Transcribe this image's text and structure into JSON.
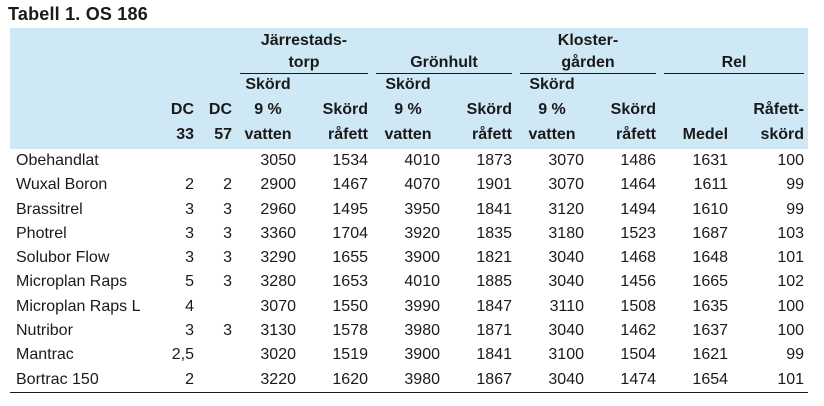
{
  "title": "Tabell 1. OS 186",
  "groups": {
    "jarrestad": [
      "Järrestads-",
      "torp"
    ],
    "gronhult": "Grönhult",
    "klostergarden": [
      "Kloster-",
      "gården"
    ],
    "rel": "Rel"
  },
  "subheaders": {
    "dc33": [
      "DC",
      "33"
    ],
    "dc57": [
      "DC",
      "57"
    ],
    "skord9": [
      "Skörd",
      "9 %",
      "vatten"
    ],
    "skordrafett": [
      "Skörd",
      "råfett"
    ],
    "medel": "Medel",
    "rafettskord": [
      "Råfett-",
      "skörd"
    ]
  },
  "rows": [
    {
      "name": "Obehandlat",
      "dc33": "",
      "dc57": "",
      "j9": "3050",
      "jr": "1534",
      "g9": "4010",
      "gr": "1873",
      "k9": "3070",
      "kr": "1486",
      "medel": "1631",
      "rel": "100"
    },
    {
      "name": "Wuxal Boron",
      "dc33": "2",
      "dc57": "2",
      "j9": "2900",
      "jr": "1467",
      "g9": "4070",
      "gr": "1901",
      "k9": "3070",
      "kr": "1464",
      "medel": "1611",
      "rel": "99"
    },
    {
      "name": "Brassitrel",
      "dc33": "3",
      "dc57": "3",
      "j9": "2960",
      "jr": "1495",
      "g9": "3950",
      "gr": "1841",
      "k9": "3120",
      "kr": "1494",
      "medel": "1610",
      "rel": "99"
    },
    {
      "name": "Photrel",
      "dc33": "3",
      "dc57": "3",
      "j9": "3360",
      "jr": "1704",
      "g9": "3920",
      "gr": "1835",
      "k9": "3180",
      "kr": "1523",
      "medel": "1687",
      "rel": "103"
    },
    {
      "name": "Solubor Flow",
      "dc33": "3",
      "dc57": "3",
      "j9": "3290",
      "jr": "1655",
      "g9": "3900",
      "gr": "1821",
      "k9": "3040",
      "kr": "1468",
      "medel": "1648",
      "rel": "101"
    },
    {
      "name": "Microplan Raps",
      "dc33": "5",
      "dc57": "3",
      "j9": "3280",
      "jr": "1653",
      "g9": "4010",
      "gr": "1885",
      "k9": "3040",
      "kr": "1456",
      "medel": "1665",
      "rel": "102"
    },
    {
      "name": "Microplan Raps L",
      "dc33": "4",
      "dc57": "",
      "j9": "3070",
      "jr": "1550",
      "g9": "3990",
      "gr": "1847",
      "k9": "3110",
      "kr": "1508",
      "medel": "1635",
      "rel": "100"
    },
    {
      "name": "Nutribor",
      "dc33": "3",
      "dc57": "3",
      "j9": "3130",
      "jr": "1578",
      "g9": "3980",
      "gr": "1871",
      "k9": "3040",
      "kr": "1462",
      "medel": "1637",
      "rel": "100"
    },
    {
      "name": "Mantrac",
      "dc33": "2,5",
      "dc57": "",
      "j9": "3020",
      "jr": "1519",
      "g9": "3900",
      "gr": "1841",
      "k9": "3100",
      "kr": "1504",
      "medel": "1621",
      "rel": "99"
    },
    {
      "name": "Bortrac 150",
      "dc33": "2",
      "dc57": "",
      "j9": "3220",
      "jr": "1620",
      "g9": "3980",
      "gr": "1867",
      "k9": "3040",
      "kr": "1474",
      "medel": "1654",
      "rel": "101"
    }
  ]
}
